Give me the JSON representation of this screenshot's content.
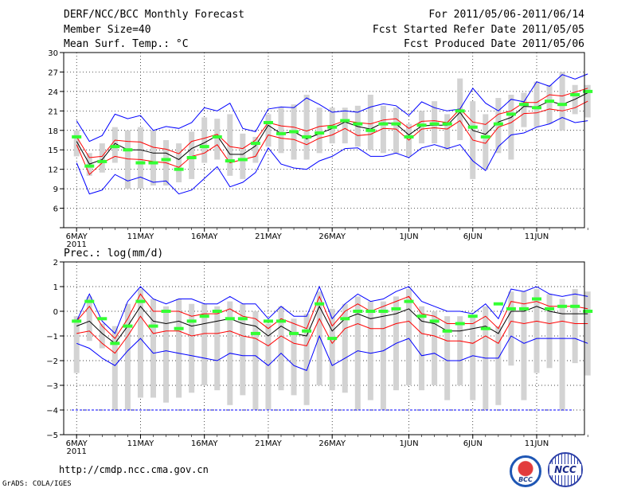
{
  "header": {
    "title": "DERF/NCC/BCC Monthly Forecast",
    "member_size": "Member Size=40",
    "variable_1": "Mean Surf. Temp.: °C",
    "for_range": "For 2011/05/06-2011/06/14",
    "fcst_started": "Fcst Started Refer Date 2011/05/05",
    "fcst_produced": "Fcst Produced Date 2011/05/06"
  },
  "footer": {
    "url": "http://cmdp.ncc.cma.gov.cn",
    "credit": "GrADS: COLA/IGES",
    "logo_bcc": "BCC",
    "logo_ncc": "NCC"
  },
  "colors": {
    "envelope": "#0000ff",
    "spread": "#ff0000",
    "mean": "#000000",
    "observed": "#33ff33",
    "bar": "#d3d3d3",
    "grid": "#000000",
    "baseline": "#0000ff"
  },
  "chart_data": [
    {
      "type": "line",
      "title": "Mean Surf. Temp.: °C",
      "xlabel": "",
      "ylabel": "°C",
      "ylim": [
        3,
        30
      ],
      "y_ticks": [
        3,
        6,
        9,
        12,
        15,
        18,
        21,
        24,
        27,
        30
      ],
      "y_tick_labels": [
        "",
        "6",
        "9",
        "12",
        "15",
        "18",
        "21",
        "24",
        "27",
        "30"
      ],
      "x_ticks": [
        {
          "day": 0,
          "label": "6MAY",
          "sub": "2011"
        },
        {
          "day": 5,
          "label": "11MAY",
          "sub": ""
        },
        {
          "day": 10,
          "label": "16MAY",
          "sub": ""
        },
        {
          "day": 15,
          "label": "21MAY",
          "sub": ""
        },
        {
          "day": 20,
          "label": "26MAY",
          "sub": ""
        },
        {
          "day": 26,
          "label": "1JUN",
          "sub": ""
        },
        {
          "day": 31,
          "label": "6JUN",
          "sub": ""
        },
        {
          "day": 36,
          "label": "11JUN",
          "sub": ""
        }
      ],
      "grid": true,
      "series": [
        {
          "name": "max",
          "values": [
            19.5,
            16.3,
            17.2,
            20.5,
            19.8,
            20.3,
            18.0,
            18.6,
            18.3,
            19.2,
            21.5,
            21.0,
            22.2,
            18.3,
            17.8,
            21.3,
            21.6,
            21.5,
            23.0,
            22.0,
            20.8,
            21.0,
            20.8,
            21.6,
            22.1,
            21.8,
            20.3,
            22.4,
            21.5,
            21.0,
            21.3,
            24.5,
            22.2,
            21.0,
            22.8,
            22.4,
            25.5,
            24.8,
            26.6,
            25.9,
            26.7
          ]
        },
        {
          "name": "upper",
          "values": [
            17.0,
            13.8,
            14.0,
            16.5,
            16.3,
            16.2,
            15.4,
            15.1,
            14.4,
            16.3,
            16.8,
            17.4,
            15.5,
            15.2,
            16.5,
            19.2,
            18.7,
            18.5,
            17.9,
            18.6,
            18.8,
            19.5,
            19.2,
            19.0,
            19.6,
            19.8,
            18.3,
            19.4,
            19.5,
            19.2,
            21.3,
            19.3,
            18.9,
            20.5,
            21.0,
            22.3,
            22.3,
            23.5,
            23.3,
            23.9,
            24.5
          ]
        },
        {
          "name": "mean",
          "values": [
            16.3,
            12.8,
            13.5,
            16.0,
            15.0,
            15.0,
            14.5,
            14.5,
            13.5,
            15.2,
            16.1,
            17.2,
            14.3,
            14.3,
            15.6,
            18.8,
            17.5,
            17.8,
            16.7,
            17.5,
            18.3,
            19.3,
            18.6,
            18.2,
            19.2,
            19.0,
            17.3,
            18.7,
            18.8,
            18.8,
            20.8,
            18.0,
            17.4,
            19.3,
            20.0,
            21.7,
            21.6,
            22.5,
            22.0,
            22.8,
            23.8
          ]
        },
        {
          "name": "lower",
          "values": [
            15.8,
            11.2,
            13.0,
            14.0,
            13.6,
            13.5,
            13.2,
            13.0,
            12.3,
            14.0,
            14.5,
            15.8,
            13.0,
            13.5,
            14.0,
            17.3,
            16.8,
            16.6,
            15.8,
            16.8,
            17.3,
            18.3,
            17.2,
            17.4,
            18.3,
            18.2,
            16.5,
            18.2,
            18.4,
            18.2,
            19.5,
            16.5,
            16.0,
            18.5,
            19.2,
            20.6,
            20.7,
            21.3,
            21.0,
            21.5,
            22.5
          ]
        },
        {
          "name": "min",
          "values": [
            13.0,
            8.2,
            8.8,
            11.2,
            10.2,
            10.8,
            10.0,
            10.2,
            8.2,
            8.8,
            10.6,
            12.4,
            9.3,
            10.0,
            11.5,
            15.3,
            12.8,
            12.2,
            12.0,
            13.3,
            14.0,
            15.2,
            15.3,
            14.0,
            14.0,
            14.5,
            13.8,
            15.3,
            15.8,
            15.2,
            15.8,
            13.3,
            11.8,
            15.5,
            17.3,
            17.6,
            18.5,
            19.0,
            20.0,
            19.2,
            19.5
          ]
        },
        {
          "name": "observed",
          "values": [
            17.0,
            12.5,
            13.2,
            15.5,
            15.0,
            13.0,
            13.0,
            13.5,
            12.0,
            13.8,
            15.5,
            17.0,
            13.3,
            13.5,
            16.0,
            19.2,
            17.5,
            17.8,
            17.0,
            17.6,
            18.5,
            19.5,
            19.0,
            18.0,
            19.0,
            19.0,
            17.0,
            18.8,
            19.0,
            19.0,
            21.0,
            18.5,
            17.0,
            19.0,
            20.5,
            22.0,
            21.5,
            22.5,
            22.0,
            23.5,
            24.0
          ]
        },
        {
          "name": "bar_top",
          "values": [
            18.0,
            14.5,
            16.0,
            18.5,
            18.0,
            18.5,
            18.0,
            16.5,
            16.0,
            17.8,
            20.0,
            19.8,
            20.5,
            17.5,
            17.0,
            20.5,
            21.5,
            22.0,
            23.5,
            21.5,
            21.5,
            21.5,
            21.8,
            23.5,
            21.8,
            21.5,
            19.0,
            21.0,
            22.5,
            20.5,
            26.0,
            22.5,
            20.5,
            23.0,
            23.5,
            23.8,
            25.5,
            25.0,
            27.0,
            25.0,
            25.0
          ]
        },
        {
          "name": "bar_bottom",
          "values": [
            14.0,
            11.0,
            11.5,
            13.0,
            9.0,
            9.0,
            9.5,
            9.5,
            10.0,
            10.5,
            13.0,
            13.5,
            11.0,
            10.5,
            13.0,
            15.5,
            14.5,
            13.5,
            13.5,
            14.5,
            16.0,
            16.0,
            15.5,
            15.0,
            14.5,
            14.5,
            14.0,
            16.0,
            16.0,
            15.0,
            16.5,
            10.5,
            12.0,
            14.5,
            13.5,
            18.5,
            18.5,
            19.0,
            18.0,
            20.5,
            20.0
          ]
        }
      ]
    },
    {
      "type": "line",
      "title": "Prec.: log(mm/d)",
      "xlabel": "",
      "ylabel": "log(mm/d)",
      "ylim": [
        -5,
        2
      ],
      "y_ticks": [
        -5,
        -4,
        -3,
        -2,
        -1,
        0,
        1,
        2
      ],
      "y_tick_labels": [
        "−5",
        "−4",
        "−3",
        "−2",
        "−1",
        "0",
        "1",
        "2"
      ],
      "x_ticks": [
        {
          "day": 0,
          "label": "6MAY",
          "sub": "2011"
        },
        {
          "day": 5,
          "label": "11MAY",
          "sub": ""
        },
        {
          "day": 10,
          "label": "16MAY",
          "sub": ""
        },
        {
          "day": 15,
          "label": "21MAY",
          "sub": ""
        },
        {
          "day": 20,
          "label": "26MAY",
          "sub": ""
        },
        {
          "day": 26,
          "label": "1JUN",
          "sub": ""
        },
        {
          "day": 31,
          "label": "6JUN",
          "sub": ""
        },
        {
          "day": 36,
          "label": "11JUN",
          "sub": ""
        }
      ],
      "grid": true,
      "baseline": -4,
      "series": [
        {
          "name": "max",
          "values": [
            -0.4,
            0.7,
            -0.4,
            -0.9,
            0.4,
            1.0,
            0.5,
            0.3,
            0.5,
            0.5,
            0.3,
            0.3,
            0.6,
            0.3,
            0.3,
            -0.3,
            0.2,
            -0.2,
            -0.2,
            1.0,
            -0.3,
            0.3,
            0.7,
            0.4,
            0.5,
            0.8,
            1.0,
            0.4,
            0.2,
            0.0,
            0.0,
            -0.1,
            0.3,
            -0.3,
            0.9,
            0.8,
            1.0,
            0.7,
            0.6,
            0.7,
            0.6
          ]
        },
        {
          "name": "upper",
          "values": [
            -0.4,
            0.2,
            -0.6,
            -1.1,
            -0.3,
            0.7,
            0.0,
            0.0,
            0.0,
            -0.2,
            -0.1,
            -0.1,
            0.1,
            -0.2,
            -0.3,
            -0.7,
            -0.3,
            -0.5,
            -0.7,
            0.6,
            -0.6,
            0.0,
            0.3,
            0.0,
            0.2,
            0.4,
            0.6,
            -0.1,
            -0.2,
            -0.5,
            -0.5,
            -0.5,
            -0.2,
            -0.7,
            0.4,
            0.3,
            0.4,
            0.2,
            0.2,
            0.2,
            0.1
          ]
        },
        {
          "name": "mean",
          "values": [
            -0.6,
            -0.4,
            -0.9,
            -1.3,
            -0.6,
            0.2,
            -0.4,
            -0.5,
            -0.4,
            -0.6,
            -0.5,
            -0.4,
            -0.3,
            -0.5,
            -0.6,
            -1.0,
            -0.6,
            -0.9,
            -1.0,
            0.2,
            -0.8,
            -0.3,
            -0.1,
            -0.3,
            -0.2,
            -0.1,
            0.1,
            -0.4,
            -0.5,
            -0.8,
            -0.8,
            -0.7,
            -0.6,
            -0.9,
            0.0,
            0.0,
            0.2,
            0.0,
            -0.1,
            -0.1,
            -0.1
          ]
        },
        {
          "name": "lower",
          "values": [
            -0.9,
            -0.8,
            -1.3,
            -1.7,
            -1.0,
            -0.2,
            -0.9,
            -0.8,
            -0.8,
            -1.0,
            -0.9,
            -0.9,
            -0.8,
            -1.0,
            -1.1,
            -1.4,
            -1.0,
            -1.3,
            -1.4,
            -0.3,
            -1.3,
            -0.7,
            -0.5,
            -0.7,
            -0.7,
            -0.5,
            -0.4,
            -0.9,
            -1.0,
            -1.2,
            -1.2,
            -1.3,
            -1.0,
            -1.3,
            -0.4,
            -0.5,
            -0.4,
            -0.5,
            -0.4,
            -0.5,
            -0.5
          ]
        },
        {
          "name": "min",
          "values": [
            -1.3,
            -1.5,
            -1.9,
            -2.2,
            -1.6,
            -1.1,
            -1.7,
            -1.6,
            -1.7,
            -1.8,
            -1.9,
            -2.0,
            -1.7,
            -1.8,
            -1.8,
            -2.2,
            -1.7,
            -2.2,
            -2.4,
            -1.0,
            -2.2,
            -1.9,
            -1.6,
            -1.7,
            -1.6,
            -1.3,
            -1.1,
            -1.8,
            -1.7,
            -2.0,
            -2.0,
            -1.8,
            -1.9,
            -1.9,
            -1.0,
            -1.3,
            -1.1,
            -1.1,
            -1.1,
            -1.1,
            -1.3
          ]
        },
        {
          "name": "observed",
          "values": [
            -0.4,
            0.4,
            -0.3,
            -1.3,
            -0.6,
            0.4,
            -0.6,
            0.0,
            -0.7,
            -0.4,
            -0.2,
            0.0,
            -0.3,
            -0.3,
            -0.9,
            -0.4,
            -0.4,
            -0.9,
            -0.8,
            0.3,
            -1.1,
            -0.3,
            0.0,
            0.0,
            0.0,
            0.1,
            0.4,
            -0.2,
            -0.4,
            -0.8,
            -0.5,
            -0.2,
            -0.7,
            0.3,
            0.1,
            0.1,
            0.5,
            0.1,
            0.2,
            0.2,
            0.0
          ]
        },
        {
          "name": "bar_top",
          "values": [
            -0.2,
            0.6,
            -0.5,
            -0.6,
            0.3,
            0.9,
            0.5,
            0.2,
            0.5,
            0.3,
            0.3,
            0.2,
            0.4,
            0.3,
            0.0,
            -0.5,
            0.2,
            -0.3,
            -0.1,
            0.8,
            0.1,
            0.3,
            0.6,
            0.4,
            0.4,
            0.6,
            0.9,
            0.2,
            0.0,
            -0.2,
            -0.2,
            -0.2,
            0.2,
            -0.6,
            0.8,
            0.8,
            0.9,
            0.7,
            0.5,
            0.9,
            0.8
          ]
        },
        {
          "name": "bar_bottom",
          "values": [
            -2.5,
            -1.2,
            -1.5,
            -4.0,
            -4.0,
            -3.5,
            -3.5,
            -3.7,
            -3.5,
            -3.3,
            -3.0,
            -3.2,
            -3.8,
            -3.4,
            -4.0,
            -4.0,
            -3.2,
            -3.4,
            -3.8,
            -3.0,
            -3.2,
            -3.3,
            -4.0,
            -3.6,
            -4.0,
            -3.2,
            -3.0,
            -3.2,
            -3.0,
            -3.6,
            -3.0,
            -3.6,
            -4.0,
            -3.8,
            -2.2,
            -3.6,
            -2.5,
            -2.3,
            -4.0,
            -2.1,
            -2.6
          ]
        }
      ]
    }
  ]
}
